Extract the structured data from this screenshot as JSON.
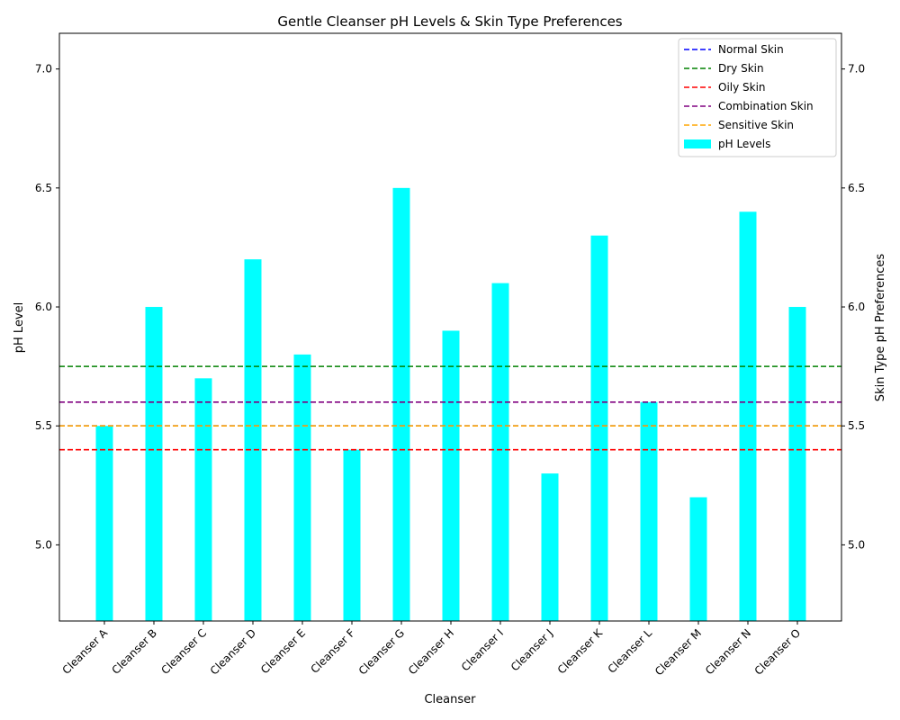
{
  "chart_data": {
    "type": "bar",
    "title": "Gentle Cleanser pH Levels & Skin Type Preferences",
    "xlabel": "Cleanser",
    "ylabel": "pH Level",
    "ylabel_right": "Skin Type pH Preferences",
    "ylim": [
      4.68,
      7.15
    ],
    "yticks": [
      "5.0",
      "5.5",
      "6.0",
      "6.5",
      "7.0"
    ],
    "ytick_values": [
      5.0,
      5.5,
      6.0,
      6.5,
      7.0
    ],
    "categories": [
      "Cleanser A",
      "Cleanser B",
      "Cleanser C",
      "Cleanser D",
      "Cleanser E",
      "Cleanser F",
      "Cleanser G",
      "Cleanser H",
      "Cleanser I",
      "Cleanser J",
      "Cleanser K",
      "Cleanser L",
      "Cleanser M",
      "Cleanser N",
      "Cleanser O"
    ],
    "series": [
      {
        "name": "pH Levels",
        "color": "#00ffff",
        "values": [
          5.5,
          6.0,
          5.7,
          6.2,
          5.8,
          5.4,
          6.5,
          5.9,
          6.1,
          5.3,
          6.3,
          5.6,
          5.2,
          6.4,
          6.0
        ]
      }
    ],
    "reference_lines": [
      {
        "name": "Normal Skin",
        "value": 5.5,
        "color": "#0000ff"
      },
      {
        "name": "Dry Skin",
        "value": 5.75,
        "color": "#008000"
      },
      {
        "name": "Oily Skin",
        "value": 5.4,
        "color": "#ff0000"
      },
      {
        "name": "Combination Skin",
        "value": 5.6,
        "color": "#800080"
      },
      {
        "name": "Sensitive Skin",
        "value": 5.5,
        "color": "#ffa500"
      }
    ],
    "legend": {
      "position": "top-right",
      "entries": [
        "Normal Skin",
        "Dry Skin",
        "Oily Skin",
        "Combination Skin",
        "Sensitive Skin",
        "pH Levels"
      ]
    }
  }
}
